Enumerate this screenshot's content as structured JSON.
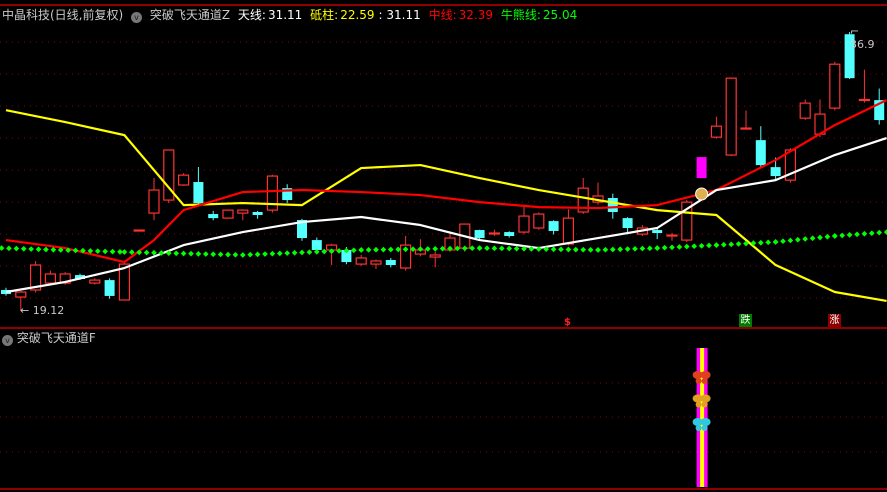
{
  "header": {
    "stock": "中晶科技(日线,前复权)",
    "indicator": "突破飞天通道Z",
    "tian_label": "天线:",
    "tian_value": "31.11",
    "di_label": "砥柱:",
    "di_value": "22.59",
    "di_extra": ": 31.11",
    "zhong_label": "中线:",
    "zhong_value": "32.39",
    "niu_label": "牛熊线:",
    "niu_value": "25.04"
  },
  "sub_panel": {
    "indicator": "突破飞天通道F"
  },
  "labels": {
    "low": "19.12",
    "high": "36.9",
    "dollar": "$",
    "die": "跌",
    "zhang": "涨"
  },
  "colors": {
    "up": "#ff3232",
    "down": "#54ffff",
    "tian": "#ffffff",
    "dizhu": "#ffff00",
    "zhong": "#ff0000",
    "niu": "#00ff00",
    "highlight": "#ff00ff",
    "grid": "#8b0000"
  },
  "chart_data": {
    "type": "candlestick",
    "price_range": [
      19.12,
      36.9
    ],
    "candles": [
      [
        20.46,
        20.6,
        20.1,
        20.2
      ],
      [
        20.01,
        20.4,
        19.12,
        20.33
      ],
      [
        20.46,
        22.3,
        20.3,
        22.05
      ],
      [
        20.9,
        21.7,
        20.8,
        21.48
      ],
      [
        20.9,
        21.6,
        20.8,
        21.48
      ],
      [
        21.41,
        21.5,
        21.1,
        21.16
      ],
      [
        20.9,
        21.2,
        20.8,
        21.09
      ],
      [
        21.09,
        21.2,
        19.9,
        20.08
      ],
      [
        19.82,
        22.2,
        19.8,
        22.11
      ],
      [
        24.28,
        24.3,
        24.28,
        24.28
      ],
      [
        25.36,
        27.6,
        24.9,
        26.83
      ],
      [
        26.19,
        29.4,
        26.0,
        29.38
      ],
      [
        27.15,
        27.9,
        27.1,
        27.78
      ],
      [
        27.34,
        28.3,
        25.9,
        26.0
      ],
      [
        25.3,
        25.5,
        24.9,
        25.04
      ],
      [
        25.04,
        25.6,
        25.0,
        25.55
      ],
      [
        25.36,
        25.6,
        24.9,
        25.55
      ],
      [
        25.43,
        25.5,
        25.0,
        25.24
      ],
      [
        25.55,
        27.8,
        25.4,
        27.72
      ],
      [
        26.95,
        27.2,
        26.0,
        26.19
      ],
      [
        24.92,
        25.0,
        23.6,
        23.77
      ],
      [
        23.64,
        23.8,
        22.9,
        23.01
      ],
      [
        23.01,
        23.4,
        22.05,
        23.32
      ],
      [
        23.01,
        23.2,
        22.1,
        22.24
      ],
      [
        22.11,
        22.7,
        22.0,
        22.5
      ],
      [
        22.11,
        22.4,
        21.8,
        22.31
      ],
      [
        22.37,
        22.5,
        21.9,
        22.05
      ],
      [
        21.86,
        23.9,
        21.7,
        23.32
      ],
      [
        22.75,
        23.7,
        22.6,
        23.01
      ],
      [
        22.56,
        22.9,
        21.9,
        22.69
      ],
      [
        23.01,
        24.2,
        22.9,
        23.77
      ],
      [
        23.13,
        24.7,
        22.9,
        24.66
      ],
      [
        24.28,
        24.3,
        23.7,
        23.77
      ],
      [
        24.09,
        24.3,
        23.9,
        24.09
      ],
      [
        24.15,
        24.2,
        23.8,
        23.9
      ],
      [
        24.15,
        25.9,
        24.0,
        25.17
      ],
      [
        24.41,
        25.4,
        24.3,
        25.3
      ],
      [
        24.85,
        24.9,
        24.0,
        24.22
      ],
      [
        23.39,
        25.6,
        23.3,
        25.04
      ],
      [
        25.43,
        27.6,
        25.3,
        26.95
      ],
      [
        26.06,
        27.3,
        25.9,
        26.45
      ],
      [
        26.32,
        26.6,
        25.0,
        25.43
      ],
      [
        25.04,
        25.1,
        24.0,
        24.41
      ],
      [
        24.02,
        24.6,
        23.9,
        24.41
      ],
      [
        24.28,
        24.4,
        23.7,
        24.09
      ],
      [
        23.96,
        24.1,
        23.6,
        23.96
      ],
      [
        23.64,
        26.2,
        23.5,
        26.06
      ],
      [
        27.59,
        28.93,
        27.59,
        28.93
      ],
      [
        30.2,
        31.5,
        30.1,
        30.9
      ],
      [
        29.06,
        34.0,
        29.0,
        33.96
      ],
      [
        30.78,
        31.9,
        30.7,
        30.78
      ],
      [
        30.01,
        30.9,
        28.2,
        28.42
      ],
      [
        28.29,
        28.9,
        27.5,
        27.72
      ],
      [
        27.46,
        29.5,
        27.3,
        29.38
      ],
      [
        31.41,
        32.6,
        31.3,
        32.37
      ],
      [
        30.39,
        32.6,
        30.2,
        31.67
      ],
      [
        32.05,
        35.0,
        31.9,
        34.85
      ],
      [
        36.76,
        36.9,
        33.9,
        33.96
      ],
      [
        32.56,
        34.5,
        32.4,
        32.6
      ],
      [
        32.56,
        33.3,
        31.0,
        31.29
      ]
    ],
    "highlight_candle": 47,
    "series": [
      {
        "key": "dizhu",
        "points": [
          [
            0,
            31.92
          ],
          [
            4,
            31.16
          ],
          [
            8,
            30.33
          ],
          [
            12,
            25.87
          ],
          [
            16,
            26.0
          ],
          [
            20,
            25.87
          ],
          [
            24,
            28.23
          ],
          [
            28,
            28.42
          ],
          [
            32,
            27.59
          ],
          [
            36,
            26.83
          ],
          [
            40,
            26.19
          ],
          [
            44,
            25.55
          ],
          [
            48,
            25.24
          ],
          [
            52,
            22.05
          ],
          [
            56,
            20.33
          ],
          [
            59.5,
            19.76
          ]
        ]
      },
      {
        "key": "zhong",
        "points": [
          [
            0,
            23.64
          ],
          [
            4,
            23.13
          ],
          [
            8,
            22.24
          ],
          [
            10,
            23.64
          ],
          [
            12,
            25.55
          ],
          [
            16,
            26.7
          ],
          [
            20,
            26.83
          ],
          [
            24,
            26.7
          ],
          [
            28,
            26.51
          ],
          [
            32,
            26.06
          ],
          [
            36,
            25.74
          ],
          [
            40,
            25.68
          ],
          [
            44,
            25.87
          ],
          [
            48,
            26.83
          ],
          [
            52,
            28.74
          ],
          [
            56,
            30.97
          ],
          [
            59.5,
            32.56
          ]
        ]
      },
      {
        "key": "tian",
        "points": [
          [
            0,
            20.33
          ],
          [
            4,
            20.97
          ],
          [
            8,
            21.86
          ],
          [
            12,
            23.32
          ],
          [
            16,
            24.15
          ],
          [
            20,
            24.79
          ],
          [
            24,
            25.11
          ],
          [
            28,
            24.6
          ],
          [
            32,
            23.64
          ],
          [
            36,
            23.13
          ],
          [
            40,
            23.77
          ],
          [
            44,
            24.41
          ],
          [
            48,
            26.83
          ],
          [
            52,
            27.46
          ],
          [
            56,
            29.06
          ],
          [
            59.5,
            30.14
          ]
        ]
      },
      {
        "key": "niu",
        "dotted": true,
        "points": [
          [
            -0.3,
            23.13
          ],
          [
            8,
            22.88
          ],
          [
            16,
            22.69
          ],
          [
            24,
            23.01
          ],
          [
            32,
            23.13
          ],
          [
            40,
            23.01
          ],
          [
            44,
            23.13
          ],
          [
            48,
            23.32
          ],
          [
            52,
            23.52
          ],
          [
            56,
            23.9
          ],
          [
            59.5,
            24.15
          ]
        ]
      }
    ],
    "signals": {
      "money_bag_candle": 47,
      "dollar_candle": 38,
      "die_candle": 50,
      "zhang_candle": 56,
      "sub_bar_candle": 47,
      "butterflies": [
        "red",
        "gold",
        "cyan"
      ]
    }
  }
}
